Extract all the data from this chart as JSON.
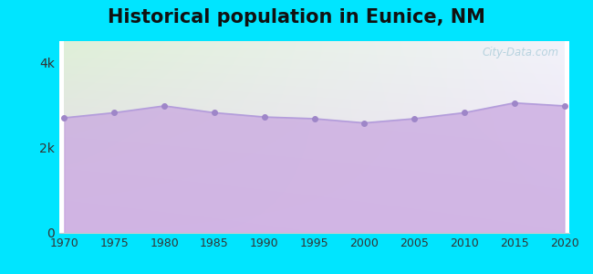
{
  "title": "Historical population in Eunice, NM",
  "years": [
    1970,
    1975,
    1980,
    1985,
    1990,
    1995,
    2000,
    2005,
    2010,
    2015,
    2020
  ],
  "population": [
    2700,
    2820,
    2980,
    2820,
    2720,
    2680,
    2580,
    2680,
    2820,
    3050,
    2980
  ],
  "ylim": [
    0,
    4500
  ],
  "ytick_labels": [
    "0",
    "2k",
    "4k"
  ],
  "ytick_values": [
    0,
    2000,
    4000
  ],
  "xticks": [
    1970,
    1975,
    1980,
    1985,
    1990,
    1995,
    2000,
    2005,
    2010,
    2015,
    2020
  ],
  "line_color": "#b39ddb",
  "fill_color": "#c9a8e0",
  "fill_alpha": 0.75,
  "marker_color": "#9e86c8",
  "marker_size": 4,
  "bg_outer": "#00e5ff",
  "bg_plot_topleft": "#dff0d8",
  "bg_plot_bottomright": "#e8d8f0",
  "title_fontsize": 15,
  "title_fontweight": "bold",
  "watermark_text": "City-Data.com",
  "watermark_color": "#88bbcc",
  "watermark_alpha": 0.55
}
